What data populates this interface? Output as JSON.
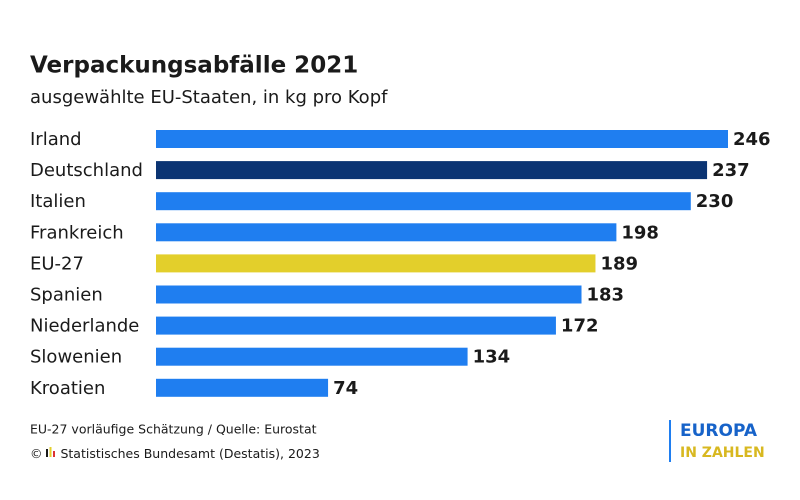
{
  "chart_data": {
    "type": "barh",
    "title": "Verpackungsabfälle 2021",
    "subtitle": "ausgewählte EU-Staaten, in kg pro Kopf",
    "categories": [
      "Irland",
      "Deutschland",
      "Italien",
      "Frankreich",
      "EU-27",
      "Spanien",
      "Niederlande",
      "Slowenien",
      "Kroatien"
    ],
    "values": [
      246,
      237,
      230,
      198,
      189,
      183,
      172,
      134,
      74
    ],
    "colors": [
      "#1f7ef0",
      "#0b3473",
      "#1f7ef0",
      "#1f7ef0",
      "#e3cf2b",
      "#1f7ef0",
      "#1f7ef0",
      "#1f7ef0",
      "#1f7ef0"
    ],
    "footnote": "EU-27 vorläufige Schätzung / Quelle: Eurostat",
    "copyright": "© Statistisches Bundesamt (Destatis), 2023",
    "logo": {
      "line1": "EUROPA",
      "line2": "IN ZAHLEN"
    }
  }
}
